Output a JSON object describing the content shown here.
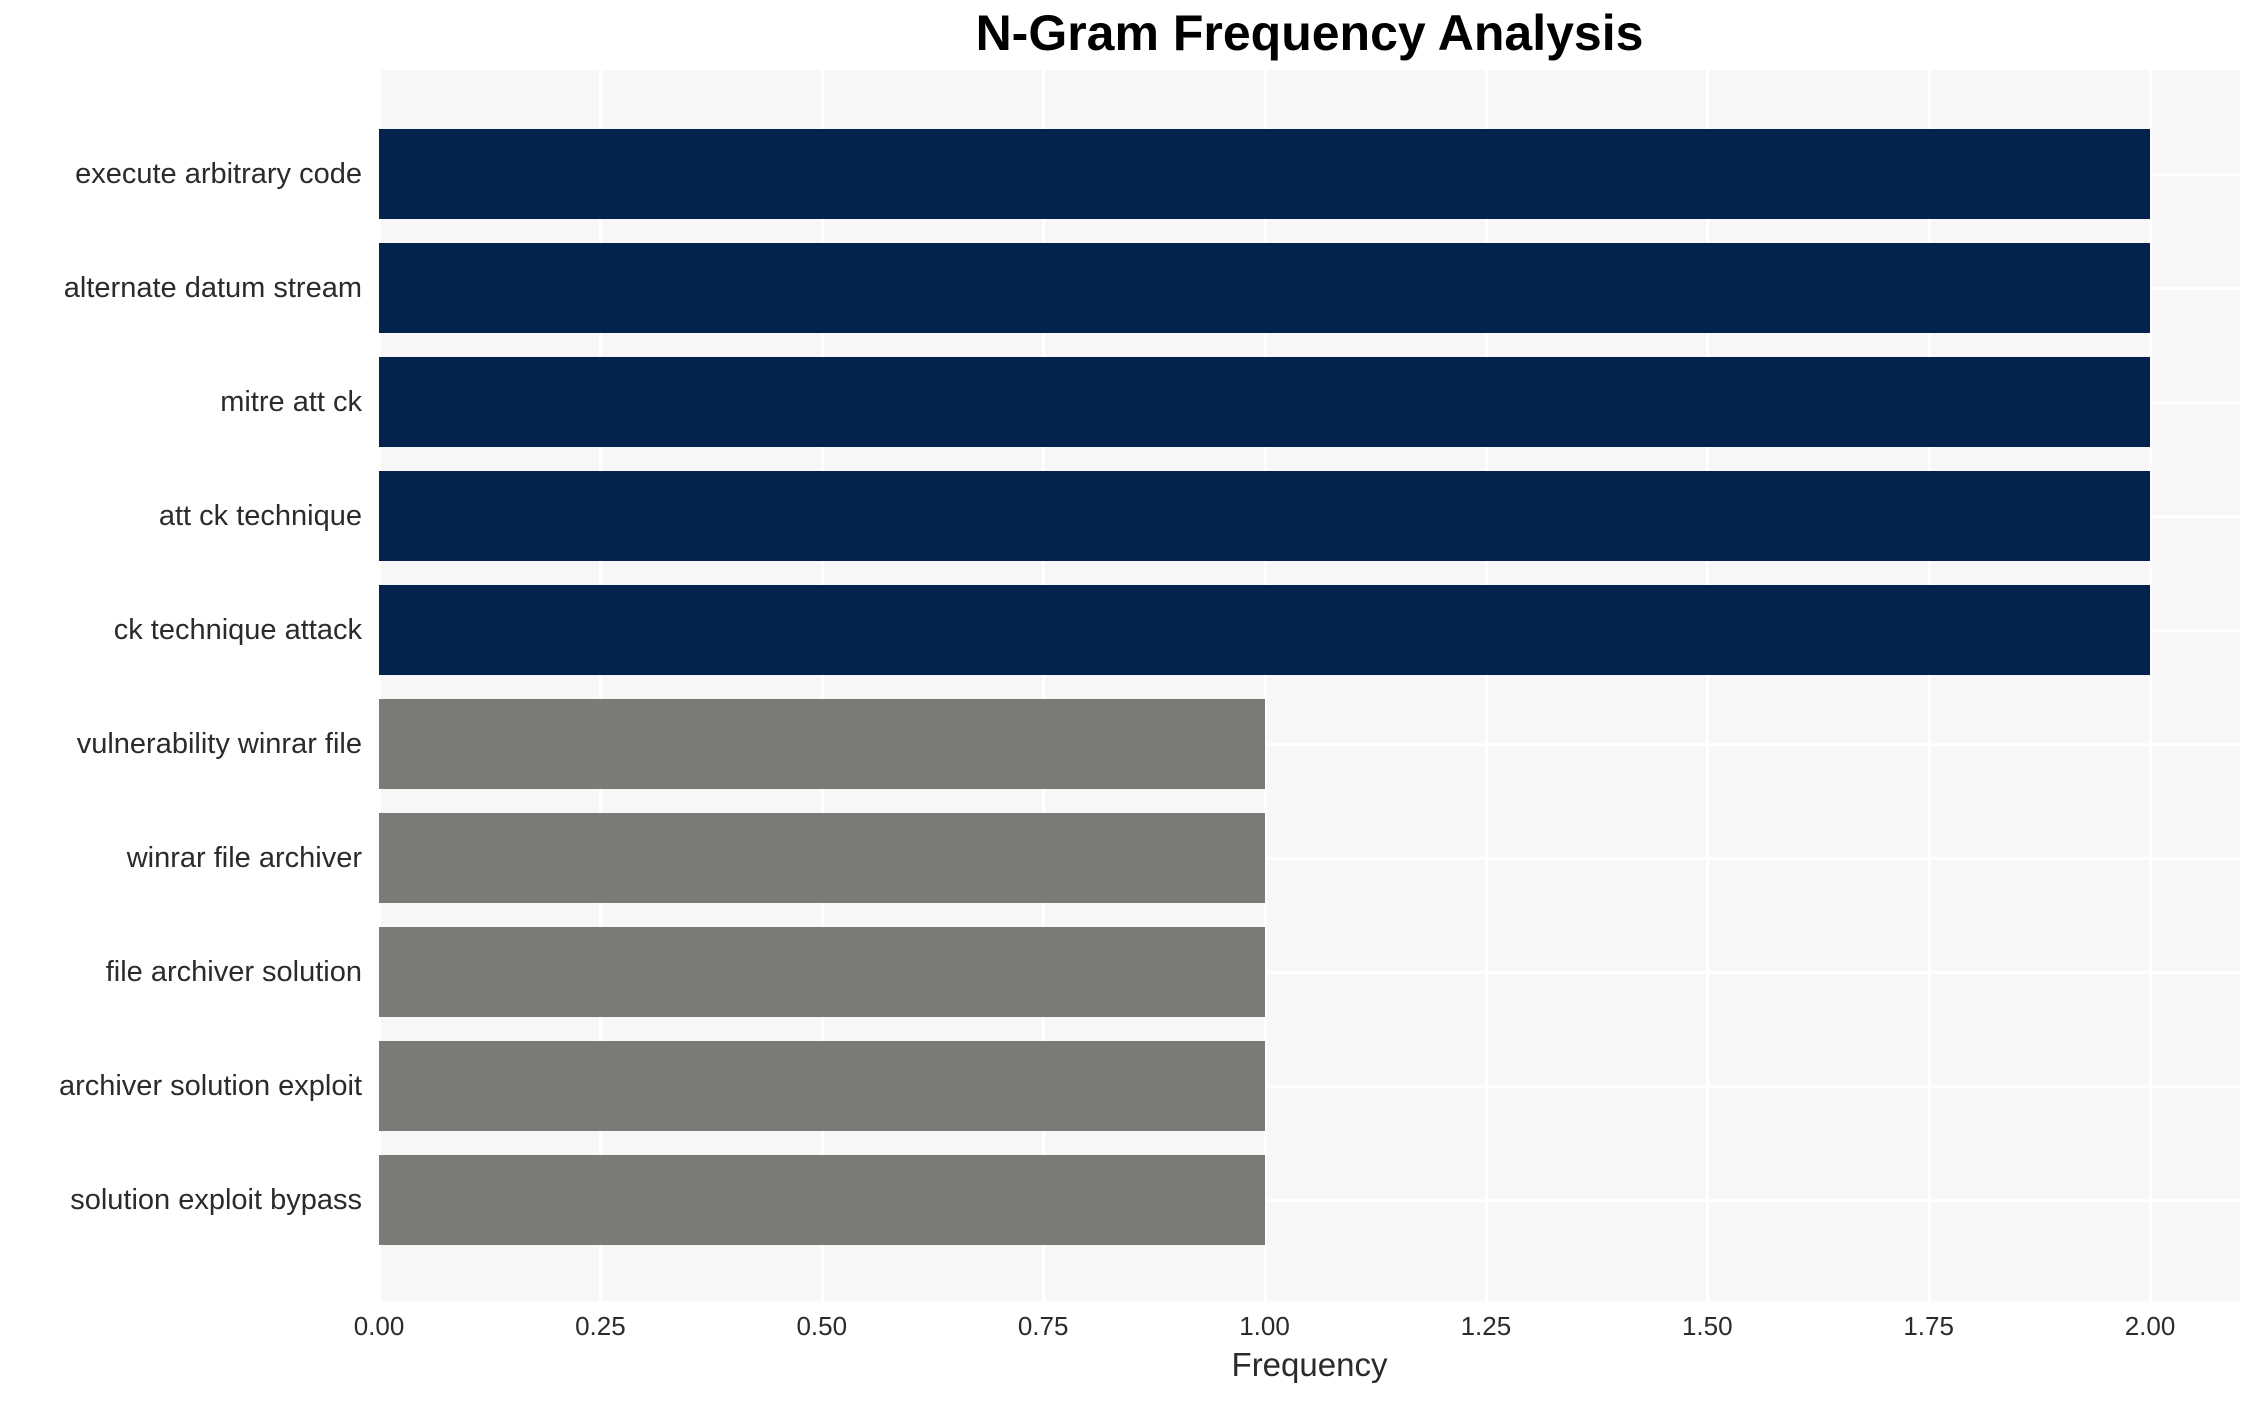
{
  "chart_data": {
    "type": "bar",
    "orientation": "horizontal",
    "title": "N-Gram Frequency Analysis",
    "xlabel": "Frequency",
    "ylabel": "",
    "categories": [
      "execute arbitrary code",
      "alternate datum stream",
      "mitre att ck",
      "att ck technique",
      "ck technique attack",
      "vulnerability winrar file",
      "winrar file archiver",
      "file archiver solution",
      "archiver solution exploit",
      "solution exploit bypass"
    ],
    "values": [
      2,
      2,
      2,
      2,
      2,
      1,
      1,
      1,
      1,
      1
    ],
    "bar_colors": [
      "#03234D",
      "#03234D",
      "#03234D",
      "#03234D",
      "#03234D",
      "#7A7A77",
      "#7A7A77",
      "#7A7A77",
      "#7A7A77",
      "#7A7A77"
    ],
    "xlim": [
      0,
      2.1
    ],
    "xticks": {
      "values": [
        0,
        0.25,
        0.5,
        0.75,
        1.0,
        1.25,
        1.5,
        1.75,
        2.0
      ],
      "labels": [
        "0.00",
        "0.25",
        "0.50",
        "0.75",
        "1.00",
        "1.25",
        "1.50",
        "1.75",
        "2.00"
      ]
    },
    "grid": true,
    "legend": "none",
    "colors": {
      "plot_background": "#F7F7F7",
      "gridline": "#FFFFFF",
      "bar_high": "#03234D",
      "bar_low": "#7A7A77",
      "title_text": "#000000",
      "tick_text": "#2B2B2B"
    }
  }
}
